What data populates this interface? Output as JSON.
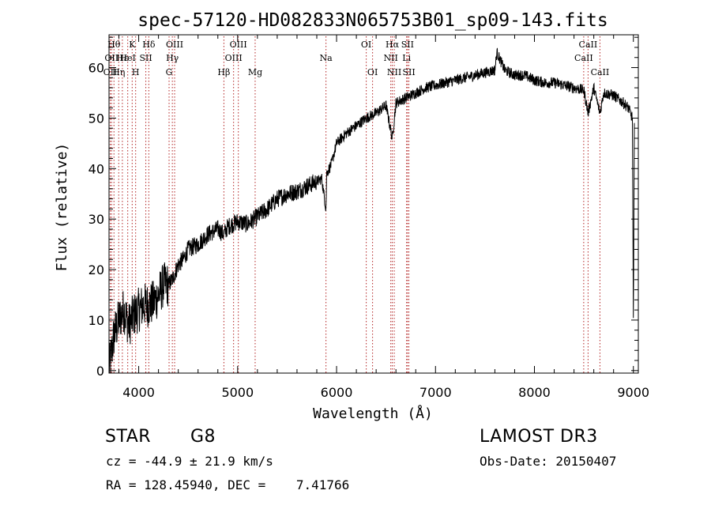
{
  "chart_data": {
    "type": "line",
    "title": "spec-57120-HD082833N065753B01_sp09-143.fits",
    "xlabel": "Wavelength (Å)",
    "ylabel": "Flux (relative)",
    "xlim": [
      3700,
      9050
    ],
    "ylim": [
      -0.5,
      66.5
    ],
    "xticks": [
      4000,
      5000,
      6000,
      7000,
      8000,
      9000
    ],
    "yticks": [
      0,
      10,
      20,
      30,
      40,
      50,
      60
    ],
    "series": [
      {
        "name": "spectrum",
        "x": [
          3700,
          3750,
          3800,
          3850,
          3900,
          3950,
          4000,
          4050,
          4100,
          4150,
          4200,
          4250,
          4300,
          4340,
          4400,
          4450,
          4500,
          4600,
          4700,
          4800,
          4861,
          4900,
          5000,
          5100,
          5200,
          5300,
          5400,
          5500,
          5600,
          5700,
          5800,
          5850,
          5893,
          5900,
          5950,
          6000,
          6100,
          6200,
          6300,
          6400,
          6500,
          6563,
          6600,
          6700,
          6800,
          6900,
          7000,
          7100,
          7200,
          7300,
          7400,
          7500,
          7600,
          7620,
          7700,
          7800,
          7900,
          8000,
          8100,
          8200,
          8300,
          8400,
          8500,
          8542,
          8600,
          8662,
          8700,
          8800,
          8900,
          8950,
          8990,
          9000,
          9010
        ],
        "y": [
          0,
          7,
          10,
          12,
          9,
          11,
          12,
          13,
          13,
          13.5,
          15,
          17,
          17,
          18,
          21,
          22,
          24,
          25,
          27,
          28,
          27,
          28.5,
          29.5,
          29,
          30.5,
          32,
          34,
          35,
          35.5,
          36.5,
          37.5,
          38,
          32,
          39,
          41,
          45,
          47,
          48.5,
          50,
          51,
          52.5,
          46,
          53,
          54,
          55,
          56,
          56.5,
          57,
          57.5,
          58,
          58.5,
          59,
          59.5,
          63,
          59.5,
          58.5,
          58.5,
          57.5,
          57,
          57,
          56.5,
          56,
          55.5,
          51,
          56,
          51,
          55,
          54.5,
          53,
          52,
          50,
          10,
          50
        ]
      }
    ],
    "lines": [
      {
        "x": 3712,
        "label": "OII",
        "row": 2
      },
      {
        "x": 3726,
        "label": "OII",
        "row": 1
      },
      {
        "x": 3750,
        "label": "Hθ",
        "row": 0
      },
      {
        "x": 3798,
        "label": "Hη",
        "row": 2
      },
      {
        "x": 3835,
        "label": "Hε",
        "row": 1
      },
      {
        "x": 3889,
        "label": "HeI",
        "row": 1
      },
      {
        "x": 3934,
        "label": "K",
        "row": 0
      },
      {
        "x": 3969,
        "label": "H",
        "row": 2
      },
      {
        "x": 4072,
        "label": "SII",
        "row": 1
      },
      {
        "x": 4102,
        "label": "Hδ",
        "row": 0
      },
      {
        "x": 4307,
        "label": "G",
        "row": 2
      },
      {
        "x": 4340,
        "label": "Hγ",
        "row": 1
      },
      {
        "x": 4363,
        "label": "OIII",
        "row": 0
      },
      {
        "x": 4861,
        "label": "Hβ",
        "row": 2
      },
      {
        "x": 4959,
        "label": "OIII",
        "row": 1
      },
      {
        "x": 5007,
        "label": "OIII",
        "row": 0
      },
      {
        "x": 5177,
        "label": "Mg",
        "row": 2
      },
      {
        "x": 5893,
        "label": "Na",
        "row": 1
      },
      {
        "x": 6300,
        "label": "OI",
        "row": 0
      },
      {
        "x": 6364,
        "label": "OI",
        "row": 2
      },
      {
        "x": 6548,
        "label": "NII",
        "row": 1
      },
      {
        "x": 6563,
        "label": "Hα",
        "row": 0
      },
      {
        "x": 6583,
        "label": "NII",
        "row": 2
      },
      {
        "x": 6708,
        "label": "Li",
        "row": 1
      },
      {
        "x": 6717,
        "label": "SII",
        "row": 0
      },
      {
        "x": 6731,
        "label": "SII",
        "row": 2
      },
      {
        "x": 8498,
        "label": "CaII",
        "row": 1
      },
      {
        "x": 8542,
        "label": "CaII",
        "row": 0
      },
      {
        "x": 8662,
        "label": "CaII",
        "row": 2
      }
    ]
  },
  "info": {
    "class": "STAR",
    "subclass": "G8",
    "survey": "LAMOST DR3",
    "cz": "cz = -44.9 ± 21.9 km/s",
    "obs_date": "Obs-Date: 20150407",
    "coords": "RA = 128.45940, DEC =    7.41766"
  }
}
